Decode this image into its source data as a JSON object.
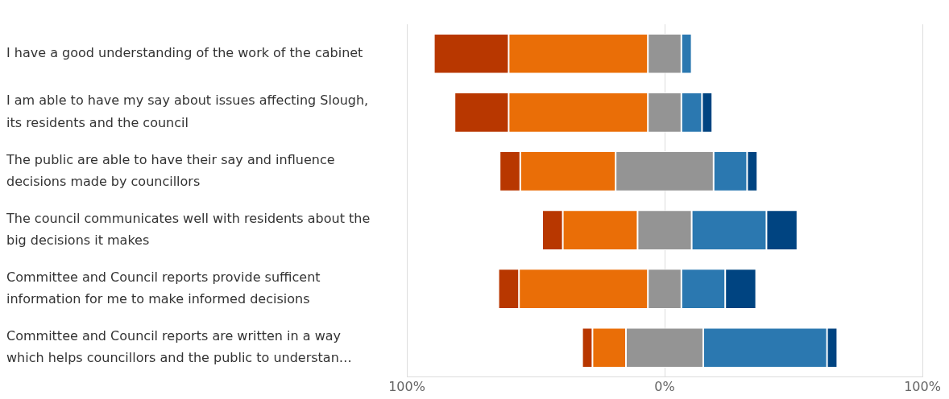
{
  "chart_data": {
    "type": "bar",
    "orientation": "horizontal",
    "categories": [
      "I have a good understanding of the work of the cabinet",
      "I am able to have my say about issues affecting Slough, its residents and the council",
      "The public are able to have their say and influence decisions made by councillors",
      "The council communicates well with residents about the big decisions it makes",
      "Committee and Council reports provide sufficent information for me to make informed decisions",
      "Committee and Council reports are written in a way which helps councillors and the public to understan…"
    ],
    "series": [
      {
        "color": "#b83700",
        "values": [
          29,
          21,
          8,
          8,
          8,
          4
        ],
        "base": [
          -89.5,
          -81.5,
          -64,
          -47.5,
          -64.5,
          -32
        ]
      },
      {
        "color": "#ea6e07",
        "values": [
          54,
          54,
          37,
          29,
          50,
          13
        ],
        "base": [
          -60.5,
          -60.5,
          -56,
          -39.5,
          -56.5,
          -28
        ]
      },
      {
        "color": "#949494",
        "values": [
          13,
          13,
          38,
          21,
          13,
          30
        ],
        "base": [
          -6.5,
          -6.5,
          -19,
          -10.5,
          -6.5,
          -15
        ]
      },
      {
        "color": "#2b78b0",
        "values": [
          4,
          8,
          13,
          29,
          17,
          48
        ],
        "base": [
          6.5,
          6.5,
          19,
          10.5,
          6.5,
          15
        ]
      },
      {
        "color": "#004481",
        "values": [
          null,
          4,
          4,
          12,
          12,
          4
        ],
        "base": [
          null,
          14.5,
          32,
          39.5,
          23.5,
          63
        ]
      }
    ],
    "xlim": [
      -100,
      100
    ],
    "xticks": [
      {
        "value": -100,
        "label": "100%"
      },
      {
        "value": 0,
        "label": "0%"
      },
      {
        "value": 100,
        "label": "100%"
      }
    ],
    "grid": "x"
  }
}
